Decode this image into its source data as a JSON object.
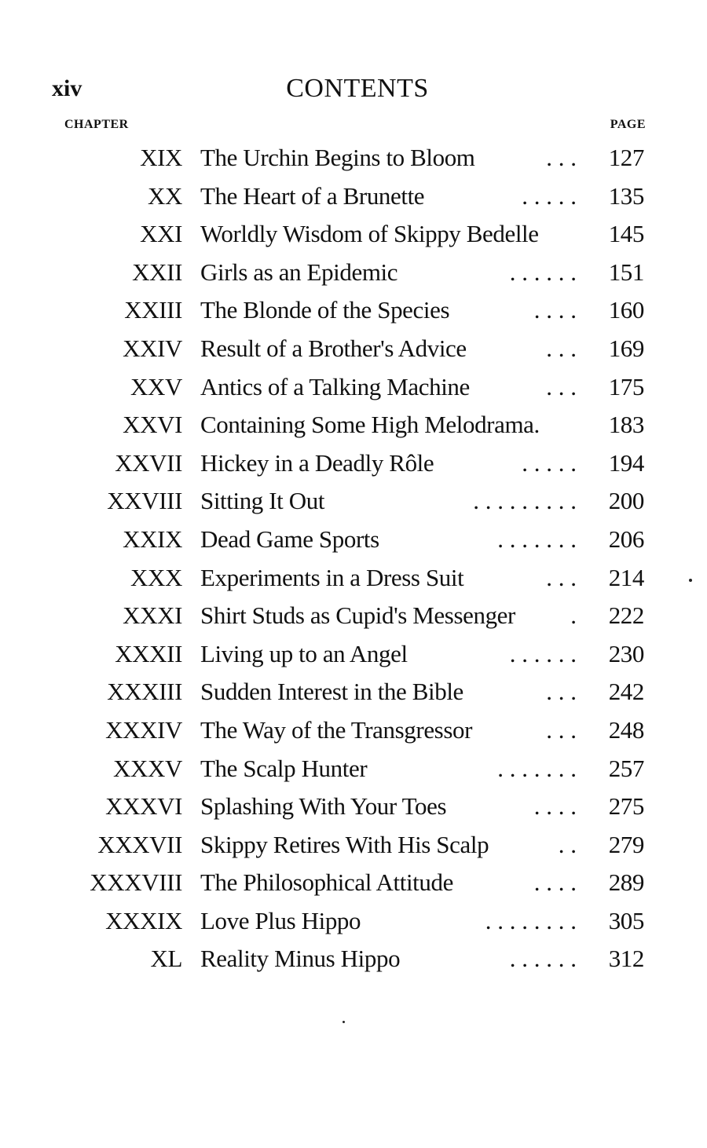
{
  "header": {
    "folio": "xiv",
    "title": "CONTENTS",
    "chapter_label": "CHAPTER",
    "page_label": "PAGE"
  },
  "entries": [
    {
      "num": "XIX",
      "title": "The Urchin Begins to Bloom",
      "leader": ". . .",
      "page": "127"
    },
    {
      "num": "XX",
      "title": "The Heart of a Brunette",
      "leader": ". . . . .",
      "page": "135"
    },
    {
      "num": "XXI",
      "title": "Worldly Wisdom of Skippy Bedelle",
      "leader": "",
      "page": "145"
    },
    {
      "num": "XXII",
      "title": "Girls as an Epidemic",
      "leader": ". . . . . .",
      "page": "151"
    },
    {
      "num": "XXIII",
      "title": "The Blonde of the Species",
      "leader": ". . . .",
      "page": "160"
    },
    {
      "num": "XXIV",
      "title": "Result of a Brother's Advice",
      "leader": ". . .",
      "page": "169"
    },
    {
      "num": "XXV",
      "title": "Antics of a Talking Machine",
      "leader": ". . .",
      "page": "175"
    },
    {
      "num": "XXVI",
      "title": "Containing Some High Melodrama.",
      "leader": "",
      "page": "183"
    },
    {
      "num": "XXVII",
      "title": "Hickey in a Deadly Rôle",
      "leader": ". . . . .",
      "page": "194"
    },
    {
      "num": "XXVIII",
      "title": "Sitting It Out",
      "leader": ". . . . . . . . .",
      "page": "200"
    },
    {
      "num": "XXIX",
      "title": "Dead Game Sports",
      "leader": ". . . . . . .",
      "page": "206"
    },
    {
      "num": "XXX",
      "title": "Experiments in a Dress Suit",
      "leader": ". . .",
      "page": "214"
    },
    {
      "num": "XXXI",
      "title": "Shirt Studs as Cupid's Messenger",
      "leader": ".",
      "page": "222"
    },
    {
      "num": "XXXII",
      "title": "Living up to an Angel",
      "leader": ". . . . . .",
      "page": "230"
    },
    {
      "num": "XXXIII",
      "title": "Sudden Interest in the Bible",
      "leader": ". . .",
      "page": "242"
    },
    {
      "num": "XXXIV",
      "title": "The Way of the Transgressor",
      "leader": ". . .",
      "page": "248"
    },
    {
      "num": "XXXV",
      "title": "The Scalp Hunter",
      "leader": ". . . . . . .",
      "page": "257"
    },
    {
      "num": "XXXVI",
      "title": "Splashing With Your Toes",
      "leader": ". . . .",
      "page": "275"
    },
    {
      "num": "XXXVII",
      "title": "Skippy Retires With His Scalp",
      "leader": ". .",
      "page": "279"
    },
    {
      "num": "XXXVIII",
      "title": "The Philosophical Attitude",
      "leader": ". . . .",
      "page": "289"
    },
    {
      "num": "XXXIX",
      "title": "Love Plus Hippo",
      "leader": ". . . . . . . .",
      "page": "305"
    },
    {
      "num": "XL",
      "title": "Reality Minus Hippo",
      "leader": ". . . . . .",
      "page": "312"
    }
  ]
}
